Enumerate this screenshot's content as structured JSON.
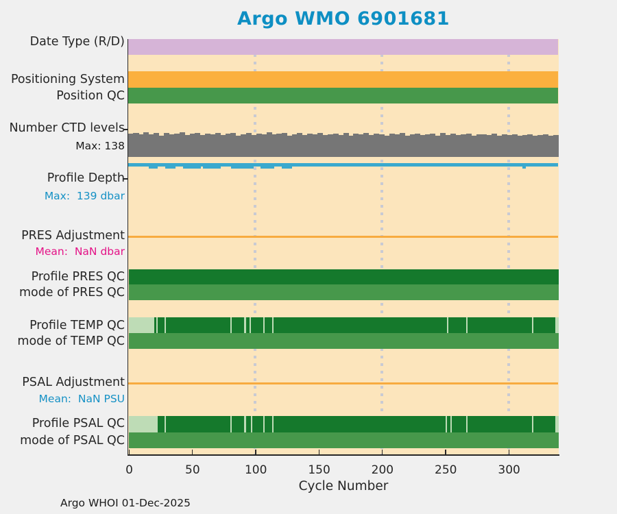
{
  "title": "Argo WMO 6901681",
  "footer": "Argo WHOI 01-Dec-2025",
  "xlabel": "Cycle Number",
  "colors": {
    "background": "#f0f0f0",
    "plot_background": "#fce5bc",
    "plum": "#d6b4d7",
    "orange": "#fbb03f",
    "green": "#47984b",
    "dark_green": "#15792c",
    "pale_green": "#bedcb6",
    "gray": "#767676",
    "blue": "#3aa9ce",
    "adjustment_orange": "#f7ab3f",
    "gridline": "#c9cad3",
    "axis": "#262626",
    "title_teal": "#0e8fc3",
    "blue_text": "#1691c5",
    "magenta_text": "#e41387"
  },
  "chart_data": {
    "type": "heatmap",
    "title": "Argo WMO 6901681",
    "xlabel": "Cycle Number",
    "x_range": [
      0,
      340
    ],
    "x_ticks": [
      0,
      50,
      100,
      150,
      200,
      250,
      300
    ],
    "grid_cycles": [
      100,
      200,
      300
    ],
    "grid": "vertical-dashed",
    "legend_position": "none",
    "rows": [
      {
        "id": "date-type",
        "label": "Date Type (R/D)",
        "kind": "solid",
        "color_key": "plum",
        "extent_cycles": [
          0,
          340
        ]
      },
      {
        "id": "positioning-system",
        "label": "Positioning System",
        "kind": "solid",
        "color_key": "orange",
        "extent_cycles": [
          0,
          340
        ]
      },
      {
        "id": "position-qc",
        "label": "Position QC",
        "kind": "solid",
        "color_key": "green",
        "extent_cycles": [
          0,
          340
        ]
      },
      {
        "id": "number-ctd-levels",
        "label": "Number CTD levels",
        "sublabel": "Max: 138",
        "sublabel_color": "#1a1a1a",
        "kind": "levels",
        "color_key": "gray",
        "max_levels": 138,
        "values": [
          130,
          136,
          125,
          138,
          128,
          133,
          120,
          135,
          126,
          131,
          137,
          123,
          129,
          134,
          121,
          132,
          127,
          136,
          124,
          130,
          133,
          119,
          128,
          135,
          122,
          131,
          126,
          137,
          125,
          129,
          133,
          118,
          127,
          134,
          123,
          130,
          125,
          136,
          121,
          128,
          132,
          124,
          135,
          119,
          129,
          126,
          133,
          122,
          130,
          127,
          117,
          131,
          125,
          134,
          120,
          128,
          132,
          123,
          126,
          130,
          118,
          133,
          124,
          129,
          121,
          127,
          131,
          119,
          125,
          128,
          122,
          130,
          117,
          126,
          123,
          128,
          120,
          124,
          127,
          118,
          122,
          125,
          119,
          121
        ]
      },
      {
        "id": "profile-depth",
        "label": "Profile Depth",
        "sublabel": "Max:  139 dbar",
        "sublabel_color": "#1691c5",
        "kind": "depthline",
        "color_key": "blue",
        "max_dbar": 139,
        "notch_cycles": [
          [
            16,
            23
          ],
          [
            29,
            37
          ],
          [
            43,
            57
          ],
          [
            59,
            73
          ],
          [
            81,
            99
          ],
          [
            104,
            115
          ],
          [
            121,
            129
          ],
          [
            311,
            314
          ]
        ]
      },
      {
        "id": "pres-adjustment",
        "label": "PRES Adjustment",
        "sublabel": "Mean:  NaN dbar",
        "sublabel_color": "#e41387",
        "kind": "adjline",
        "color_key": "adjustment_orange",
        "extent_cycles": [
          0,
          340
        ]
      },
      {
        "id": "profile-pres-qc",
        "label": "Profile PRES QC",
        "kind": "qc",
        "segments": [
          [
            "dark_green",
            0,
            340
          ]
        ],
        "gap_cycles": []
      },
      {
        "id": "mode-pres-qc",
        "label": "mode of PRES QC",
        "kind": "qc",
        "segments": [
          [
            "green",
            0,
            340
          ]
        ],
        "gap_cycles": []
      },
      {
        "id": "profile-temp-qc",
        "label": "Profile TEMP QC",
        "kind": "qc",
        "segments": [
          [
            "pale_green",
            0,
            20.5
          ],
          [
            "dark_green",
            20.5,
            337
          ],
          [
            "pale_green",
            337,
            340
          ]
        ],
        "gap_cycles": [
          22.5,
          29,
          81,
          92,
          96,
          107,
          114,
          252,
          267,
          319
        ]
      },
      {
        "id": "mode-temp-qc",
        "label": "mode of TEMP QC",
        "kind": "qc",
        "segments": [
          [
            "green",
            0,
            340
          ]
        ],
        "gap_cycles": []
      },
      {
        "id": "psal-adjustment",
        "label": "PSAL Adjustment",
        "sublabel": "Mean:  NaN PSU",
        "sublabel_color": "#1691c5",
        "kind": "adjline",
        "color_key": "adjustment_orange",
        "extent_cycles": [
          0,
          340
        ]
      },
      {
        "id": "profile-psal-qc",
        "label": "Profile PSAL QC",
        "kind": "qc",
        "segments": [
          [
            "pale_green",
            0,
            23
          ],
          [
            "dark_green",
            23,
            337
          ],
          [
            "pale_green",
            337,
            340
          ]
        ],
        "gap_cycles": [
          29,
          81,
          92,
          97,
          107,
          114,
          251,
          254.5,
          267,
          319
        ]
      },
      {
        "id": "mode-psal-qc",
        "label": "mode of PSAL QC",
        "kind": "qc",
        "segments": [
          [
            "green",
            0,
            340
          ]
        ],
        "gap_cycles": []
      }
    ]
  }
}
